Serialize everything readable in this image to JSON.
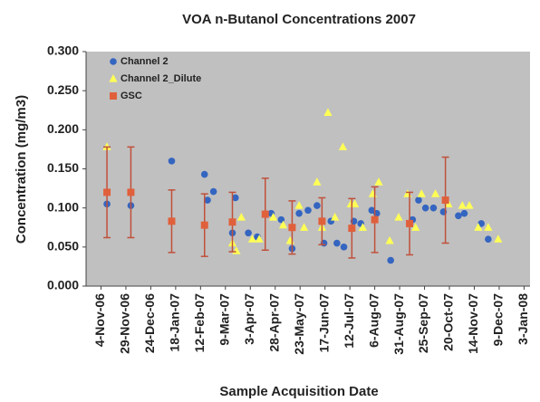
{
  "chart_data": {
    "type": "scatter",
    "title": "VOA n-Butanol Concentrations 2007",
    "x_label": "Sample Acquisition Date",
    "y_label": "Concentration (mg/m3)",
    "xlim": [
      "2006-10-20",
      "2008-01-09"
    ],
    "xticks": [
      {
        "value": "2006-11-04",
        "label": "4-Nov-06"
      },
      {
        "value": "2006-11-29",
        "label": "29-Nov-06"
      },
      {
        "value": "2006-12-24",
        "label": "24-Dec-06"
      },
      {
        "value": "2007-01-18",
        "label": "18-Jan-07"
      },
      {
        "value": "2007-02-12",
        "label": "12-Feb-07"
      },
      {
        "value": "2007-03-09",
        "label": "9-Mar-07"
      },
      {
        "value": "2007-04-03",
        "label": "3-Apr-07"
      },
      {
        "value": "2007-04-28",
        "label": "28-Apr-07"
      },
      {
        "value": "2007-05-23",
        "label": "23-May-07"
      },
      {
        "value": "2007-06-17",
        "label": "17-Jun-07"
      },
      {
        "value": "2007-07-12",
        "label": "12-Jul-07"
      },
      {
        "value": "2007-08-06",
        "label": "6-Aug-07"
      },
      {
        "value": "2007-08-31",
        "label": "31-Aug-07"
      },
      {
        "value": "2007-09-25",
        "label": "25-Sep-07"
      },
      {
        "value": "2007-10-20",
        "label": "20-Oct-07"
      },
      {
        "value": "2007-11-14",
        "label": "14-Nov-07"
      },
      {
        "value": "2007-12-09",
        "label": "9-Dec-07"
      },
      {
        "value": "2008-01-03",
        "label": "3-Jan-08"
      }
    ],
    "ylim": [
      0,
      0.3
    ],
    "yticks": [
      {
        "value": 0,
        "label": "0.000"
      },
      {
        "value": 0.05,
        "label": "0.050"
      },
      {
        "value": 0.1,
        "label": "0.100"
      },
      {
        "value": 0.15,
        "label": "0.150"
      },
      {
        "value": 0.2,
        "label": "0.200"
      },
      {
        "value": 0.25,
        "label": "0.250"
      },
      {
        "value": 0.3,
        "label": "0.300"
      }
    ],
    "grid": false,
    "legend": "upper left",
    "series": [
      {
        "name": "Channel 2",
        "color": "#3465c0",
        "marker": "circle",
        "x": [
          "2006-11-10",
          "2006-12-04",
          "2007-01-14",
          "2007-02-16",
          "2007-02-19",
          "2007-02-25",
          "2007-03-16",
          "2007-03-19",
          "2007-04-01",
          "2007-04-10",
          "2007-04-24",
          "2007-05-04",
          "2007-05-15",
          "2007-05-22",
          "2007-05-31",
          "2007-06-09",
          "2007-06-16",
          "2007-06-23",
          "2007-06-29",
          "2007-07-06",
          "2007-07-16",
          "2007-07-23",
          "2007-08-03",
          "2007-08-08",
          "2007-08-22",
          "2007-09-13",
          "2007-09-19",
          "2007-09-26",
          "2007-10-04",
          "2007-10-14",
          "2007-10-29",
          "2007-11-04",
          "2007-11-21",
          "2007-11-28"
        ],
        "values": [
          0.105,
          0.103,
          0.16,
          0.143,
          0.11,
          0.121,
          0.068,
          0.113,
          0.068,
          0.063,
          0.093,
          0.085,
          0.048,
          0.093,
          0.097,
          0.103,
          0.055,
          0.083,
          0.055,
          0.05,
          0.083,
          0.08,
          0.097,
          0.093,
          0.033,
          0.085,
          0.11,
          0.1,
          0.1,
          0.095,
          0.09,
          0.093,
          0.08,
          0.06
        ]
      },
      {
        "name": "Channel 2_Dilute",
        "color": "#ffff55",
        "marker": "triangle",
        "x": [
          "2006-11-10",
          "2007-03-16",
          "2007-03-20",
          "2007-03-25",
          "2007-04-05",
          "2007-04-12",
          "2007-04-26",
          "2007-05-06",
          "2007-05-13",
          "2007-05-22",
          "2007-05-27",
          "2007-06-09",
          "2007-06-14",
          "2007-06-20",
          "2007-06-27",
          "2007-07-05",
          "2007-07-13",
          "2007-07-17",
          "2007-07-25",
          "2007-08-04",
          "2007-08-10",
          "2007-08-21",
          "2007-08-30",
          "2007-09-08",
          "2007-09-16",
          "2007-09-22",
          "2007-10-06",
          "2007-10-19",
          "2007-11-02",
          "2007-11-09",
          "2007-11-18",
          "2007-11-28",
          "2007-12-08"
        ],
        "values": [
          0.178,
          0.055,
          0.045,
          0.088,
          0.06,
          0.06,
          0.088,
          0.078,
          0.058,
          0.103,
          0.075,
          0.133,
          0.075,
          0.222,
          0.088,
          0.178,
          0.105,
          0.105,
          0.075,
          0.118,
          0.133,
          0.058,
          0.088,
          0.118,
          0.075,
          0.118,
          0.118,
          0.105,
          0.103,
          0.103,
          0.075,
          0.075,
          0.06
        ]
      },
      {
        "name": "GSC",
        "color": "#e0603c",
        "marker": "square",
        "x": [
          "2006-11-10",
          "2006-12-04",
          "2007-01-14",
          "2007-02-16",
          "2007-03-16",
          "2007-04-18",
          "2007-05-15",
          "2007-06-14",
          "2007-07-14",
          "2007-08-06",
          "2007-09-10",
          "2007-10-16"
        ],
        "values": [
          0.12,
          0.12,
          0.083,
          0.078,
          0.082,
          0.092,
          0.075,
          0.083,
          0.074,
          0.085,
          0.08,
          0.11
        ],
        "errors": [
          0.058,
          0.058,
          0.04,
          0.04,
          0.038,
          0.046,
          0.034,
          0.03,
          0.038,
          0.042,
          0.04,
          0.055
        ]
      }
    ]
  }
}
